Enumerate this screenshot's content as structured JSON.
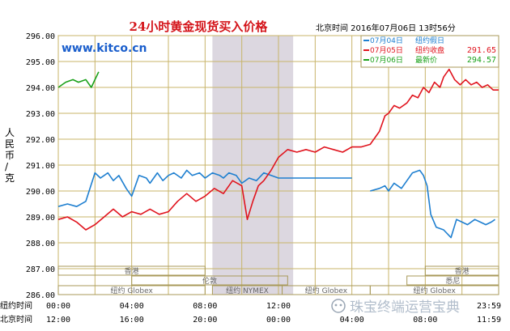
{
  "chart_data": {
    "type": "line",
    "title": "24小时黄金现货买入价格",
    "timestamp": "北京时间 2016年07月06日 13时56分",
    "watermark": "www.kitco.cn",
    "ylabel": "人民币/克",
    "ylim": [
      286,
      296
    ],
    "y_ticks": [
      "286.00",
      "287.00",
      "288.00",
      "289.00",
      "290.00",
      "291.00",
      "292.00",
      "293.00",
      "294.00",
      "295.00",
      "296.00"
    ],
    "x_row1_label": "纽约时间",
    "x_row1_ticks": [
      "00:00",
      "04:00",
      "08:00",
      "12:00",
      "",
      "",
      "23:59"
    ],
    "x_row2_label": "北京时间",
    "x_row2_ticks": [
      "12:00",
      "16:00",
      "20:00",
      "00:00",
      "04:00",
      "08:00",
      "11:59"
    ],
    "x_range_hours": [
      0,
      24
    ],
    "grid": true,
    "legend_position": "top-right",
    "legend": [
      {
        "date": "07月04日",
        "label": "纽约假日",
        "value": "",
        "color": "#1e7fd0"
      },
      {
        "date": "07月05日",
        "label": "纽约收盘",
        "value": "291.65",
        "color": "#e0141e"
      },
      {
        "date": "07月06日",
        "label": "最新价",
        "value": "294.57",
        "color": "#1aa11a"
      }
    ],
    "series": [
      {
        "name": "07月04日",
        "color": "#1e7fd0",
        "x": [
          0,
          0.5,
          1,
          1.5,
          2,
          2.3,
          2.7,
          3,
          3.3,
          3.7,
          4,
          4.2,
          4.4,
          4.8,
          5,
          5.4,
          5.7,
          6,
          6.3,
          6.7,
          7,
          7.3,
          7.7,
          8,
          8.4,
          8.8,
          9,
          9.3,
          9.7,
          10,
          10.4,
          10.8,
          11.2,
          11.6,
          12,
          12.5,
          13,
          14,
          15,
          16,
          16.5,
          17,
          17.5,
          17.8,
          18,
          18.3,
          18.7,
          19,
          19.3,
          19.7,
          19.9,
          20.1,
          20.3,
          20.6,
          21,
          21.4,
          21.7,
          22,
          22.3,
          22.7,
          23,
          23.3,
          23.6,
          23.8
        ],
        "values": [
          289.4,
          289.5,
          289.4,
          289.6,
          290.7,
          290.5,
          290.7,
          290.4,
          290.6,
          290.1,
          289.8,
          290.2,
          290.6,
          290.5,
          290.3,
          290.7,
          290.4,
          290.6,
          290.7,
          290.5,
          290.8,
          290.6,
          290.7,
          290.5,
          290.7,
          290.6,
          290.5,
          290.7,
          290.6,
          290.3,
          290.5,
          290.4,
          290.7,
          290.6,
          290.5,
          290.5,
          290.5,
          290.5,
          290.5,
          290.5,
          null,
          290.0,
          290.1,
          290.2,
          290.0,
          290.3,
          290.1,
          290.4,
          290.7,
          290.8,
          290.6,
          290.2,
          289.1,
          288.6,
          288.5,
          288.2,
          288.9,
          288.8,
          288.7,
          288.9,
          288.8,
          288.7,
          288.8,
          288.9
        ]
      },
      {
        "name": "07月05日",
        "color": "#e0141e",
        "x": [
          0,
          0.5,
          1,
          1.5,
          2,
          2.5,
          3,
          3.5,
          4,
          4.5,
          5,
          5.5,
          6,
          6.5,
          7,
          7.5,
          8,
          8.5,
          9,
          9.5,
          10,
          10.3,
          10.6,
          10.9,
          11.2,
          11.6,
          12,
          12.5,
          13,
          13.5,
          14,
          14.5,
          15,
          15.5,
          16,
          16.5,
          17,
          17.5,
          17.8,
          18,
          18.3,
          18.6,
          19,
          19.3,
          19.6,
          19.9,
          20.2,
          20.5,
          20.8,
          21,
          21.3,
          21.6,
          21.9,
          22.2,
          22.5,
          22.8,
          23.1,
          23.4,
          23.7,
          24
        ],
        "values": [
          288.9,
          289.0,
          288.8,
          288.5,
          288.7,
          289.0,
          289.3,
          289.0,
          289.2,
          289.1,
          289.3,
          289.1,
          289.2,
          289.6,
          289.9,
          289.6,
          289.8,
          290.1,
          289.9,
          290.4,
          290.2,
          288.9,
          289.6,
          290.2,
          290.4,
          290.8,
          291.3,
          291.6,
          291.5,
          291.6,
          291.5,
          291.7,
          291.6,
          291.5,
          291.7,
          291.7,
          291.8,
          292.3,
          292.9,
          293.0,
          293.3,
          293.2,
          293.4,
          293.7,
          293.6,
          294.0,
          293.8,
          294.2,
          294.0,
          294.4,
          294.7,
          294.3,
          294.1,
          294.3,
          294.1,
          294.2,
          294.0,
          294.1,
          293.9,
          293.9
        ]
      },
      {
        "name": "07月06日",
        "color": "#1aa11a",
        "x": [
          0,
          0.4,
          0.8,
          1.1,
          1.5,
          1.8,
          2.0,
          2.2
        ],
        "values": [
          294.0,
          294.2,
          294.3,
          294.2,
          294.3,
          294.0,
          294.3,
          294.6
        ]
      }
    ],
    "sessions": [
      {
        "label": "香港",
        "row": 1,
        "from_h": 0,
        "to_h": 8
      },
      {
        "label": "伦敦",
        "row": 2,
        "from_h": 4,
        "to_h": 12.5
      },
      {
        "label": "纽约 Globex",
        "row": 3,
        "from_h": 0,
        "to_h": 8
      },
      {
        "label": "纽约 NYMEX",
        "row": 3,
        "from_h": 8.4,
        "to_h": 12.2
      },
      {
        "label": "纽约 Globex",
        "row": 3,
        "from_h": 12.2,
        "to_h": 17
      },
      {
        "label": "香港",
        "row": 1,
        "from_h": 20,
        "to_h": 24
      },
      {
        "label": "悉尼",
        "row": 2,
        "from_h": 19,
        "to_h": 24
      },
      {
        "label": "纽约 Globex",
        "row": 3,
        "from_h": 17,
        "to_h": 24
      }
    ],
    "shaded_region_hours": [
      8.4,
      12.8
    ],
    "social_watermark": "珠宝终端运营宝典"
  }
}
